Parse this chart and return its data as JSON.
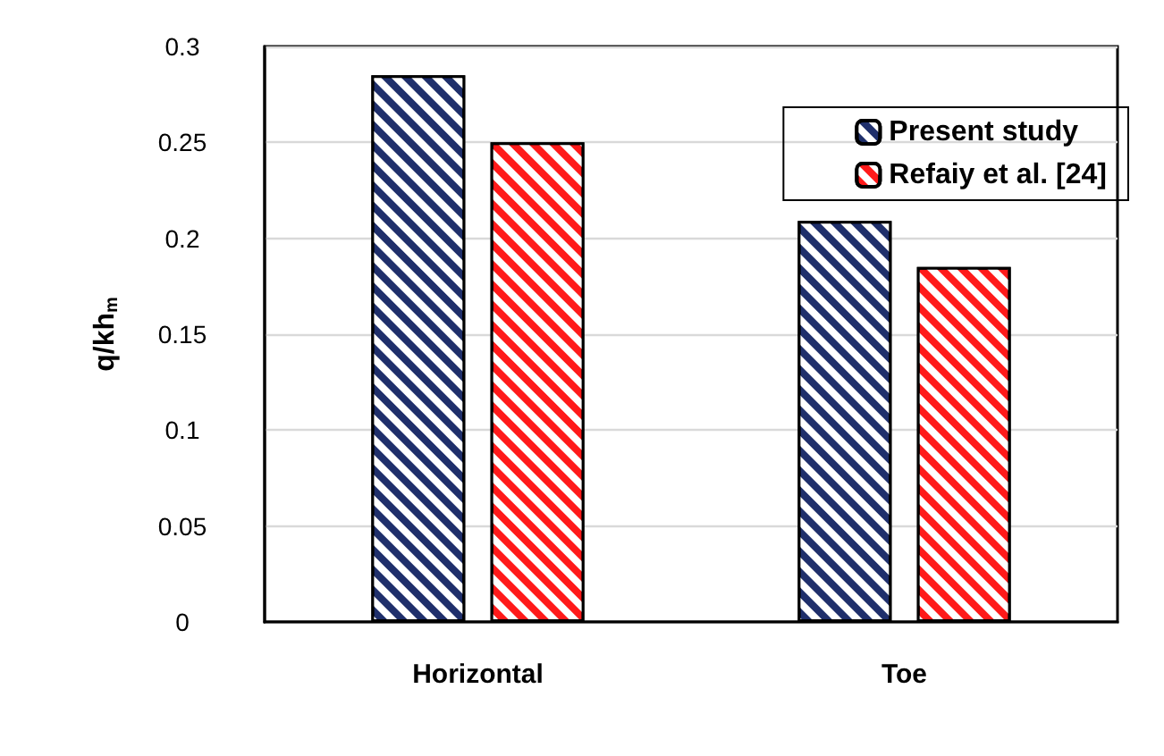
{
  "chart_data": {
    "type": "bar",
    "ylabel": "q/kh$_{m}$",
    "categories": [
      "Horizontal",
      "Toe"
    ],
    "series": [
      {
        "name": "Present study",
        "color": "#1f2f6b",
        "values": [
          0.285,
          0.209
        ]
      },
      {
        "name": "Refaiy et al. [24]",
        "color": "#ff1a1a",
        "values": [
          0.25,
          0.185
        ]
      }
    ],
    "ylim": [
      0,
      0.3
    ],
    "yticks": [
      0,
      0.05,
      0.1,
      0.15,
      0.2,
      0.25,
      0.3
    ],
    "grid": "y",
    "legend": "top right"
  }
}
